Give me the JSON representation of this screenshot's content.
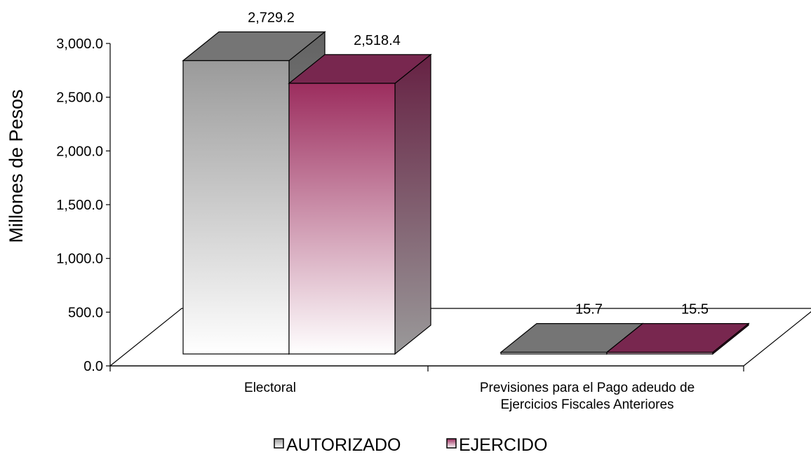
{
  "chart_data": {
    "type": "bar",
    "title": "",
    "xlabel": "",
    "ylabel": "Millones de Pesos",
    "ylim": [
      0,
      3000
    ],
    "yticks": [
      0,
      500,
      1000,
      1500,
      2000,
      2500,
      3000
    ],
    "ytick_labels": [
      "0.0",
      "500.0",
      "1,000.0",
      "1,500.0",
      "2,000.0",
      "2,500.0",
      "3,000.0"
    ],
    "categories": [
      [
        "Electoral"
      ],
      [
        "Previsiones para el Pago adeudo de",
        "Ejercicios Fiscales Anteriores"
      ]
    ],
    "series": [
      {
        "name": "AUTORIZADO",
        "values": [
          2729.2,
          15.7
        ],
        "labels": [
          "2,729.2",
          "15.7"
        ],
        "color": "#9a9a9a",
        "top_color": "#757575"
      },
      {
        "name": "EJERCIDO",
        "values": [
          2518.4,
          15.5
        ],
        "labels": [
          "2,518.4",
          "15.5"
        ],
        "color": "#9c2d5e",
        "top_color": "#78274f"
      }
    ],
    "legend": "bottom-center",
    "grid": false,
    "style": "3d-column"
  }
}
